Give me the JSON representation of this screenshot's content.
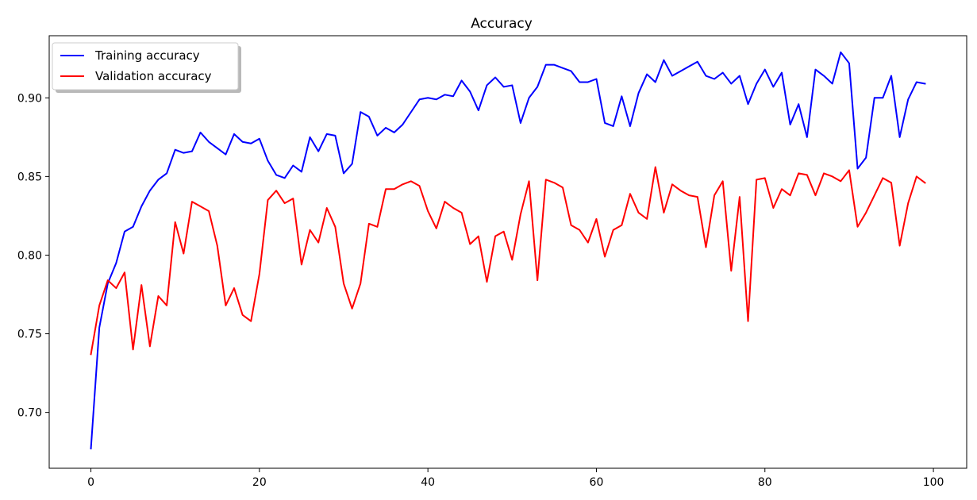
{
  "chart_data": {
    "type": "line",
    "title": "Accuracy",
    "xlabel": "",
    "ylabel": "",
    "xlim": [
      -4.95,
      103.95
    ],
    "ylim": [
      0.6645,
      0.9395
    ],
    "xticks": [
      0,
      20,
      40,
      60,
      80,
      100
    ],
    "yticks": [
      0.7,
      0.75,
      0.8,
      0.85,
      0.9
    ],
    "xtick_labels": [
      "0",
      "20",
      "40",
      "60",
      "80",
      "100"
    ],
    "ytick_labels": [
      "0.70",
      "0.75",
      "0.80",
      "0.85",
      "0.90"
    ],
    "grid": false,
    "legend": {
      "placement": "upper-left"
    },
    "x": [
      0,
      1,
      2,
      3,
      4,
      5,
      6,
      7,
      8,
      9,
      10,
      11,
      12,
      13,
      14,
      15,
      16,
      17,
      18,
      19,
      20,
      21,
      22,
      23,
      24,
      25,
      26,
      27,
      28,
      29,
      30,
      31,
      32,
      33,
      34,
      35,
      36,
      37,
      38,
      39,
      40,
      41,
      42,
      43,
      44,
      45,
      46,
      47,
      48,
      49,
      50,
      51,
      52,
      53,
      54,
      55,
      56,
      57,
      58,
      59,
      60,
      61,
      62,
      63,
      64,
      65,
      66,
      67,
      68,
      69,
      70,
      71,
      72,
      73,
      74,
      75,
      76,
      77,
      78,
      79,
      80,
      81,
      82,
      83,
      84,
      85,
      86,
      87,
      88,
      89,
      90,
      91,
      92,
      93,
      94,
      95,
      96,
      97,
      98,
      99
    ],
    "series": [
      {
        "name": "Training accuracy",
        "color": "#0000ff",
        "values": [
          0.677,
          0.754,
          0.782,
          0.795,
          0.815,
          0.818,
          0.831,
          0.841,
          0.848,
          0.852,
          0.867,
          0.865,
          0.866,
          0.878,
          0.872,
          0.868,
          0.864,
          0.877,
          0.872,
          0.871,
          0.874,
          0.86,
          0.851,
          0.849,
          0.857,
          0.853,
          0.875,
          0.866,
          0.877,
          0.876,
          0.852,
          0.858,
          0.891,
          0.888,
          0.876,
          0.881,
          0.878,
          0.883,
          0.891,
          0.899,
          0.9,
          0.899,
          0.902,
          0.901,
          0.911,
          0.904,
          0.892,
          0.908,
          0.913,
          0.907,
          0.908,
          0.884,
          0.9,
          0.907,
          0.921,
          0.921,
          0.919,
          0.917,
          0.91,
          0.91,
          0.912,
          0.884,
          0.882,
          0.901,
          0.882,
          0.903,
          0.915,
          0.91,
          0.924,
          0.914,
          0.917,
          0.92,
          0.923,
          0.914,
          0.912,
          0.916,
          0.909,
          0.914,
          0.896,
          0.909,
          0.918,
          0.907,
          0.916,
          0.883,
          0.896,
          0.875,
          0.918,
          0.914,
          0.909,
          0.929,
          0.922,
          0.855,
          0.862,
          0.9,
          0.9,
          0.914,
          0.875,
          0.899,
          0.91,
          0.909
        ]
      },
      {
        "name": "Validation accuracy",
        "color": "#ff0000",
        "values": [
          0.737,
          0.768,
          0.784,
          0.779,
          0.789,
          0.74,
          0.781,
          0.742,
          0.774,
          0.768,
          0.821,
          0.801,
          0.834,
          0.831,
          0.828,
          0.806,
          0.768,
          0.779,
          0.762,
          0.758,
          0.788,
          0.835,
          0.841,
          0.833,
          0.836,
          0.794,
          0.816,
          0.808,
          0.83,
          0.818,
          0.782,
          0.766,
          0.782,
          0.82,
          0.818,
          0.842,
          0.842,
          0.845,
          0.847,
          0.844,
          0.828,
          0.817,
          0.834,
          0.83,
          0.827,
          0.807,
          0.812,
          0.783,
          0.812,
          0.815,
          0.797,
          0.826,
          0.847,
          0.784,
          0.848,
          0.846,
          0.843,
          0.819,
          0.816,
          0.808,
          0.823,
          0.799,
          0.816,
          0.819,
          0.839,
          0.827,
          0.823,
          0.856,
          0.827,
          0.845,
          0.841,
          0.838,
          0.837,
          0.805,
          0.838,
          0.847,
          0.79,
          0.837,
          0.758,
          0.848,
          0.849,
          0.83,
          0.842,
          0.838,
          0.852,
          0.851,
          0.838,
          0.852,
          0.85,
          0.847,
          0.854,
          0.818,
          0.827,
          0.838,
          0.849,
          0.846,
          0.806,
          0.833,
          0.85,
          0.846
        ]
      }
    ]
  }
}
